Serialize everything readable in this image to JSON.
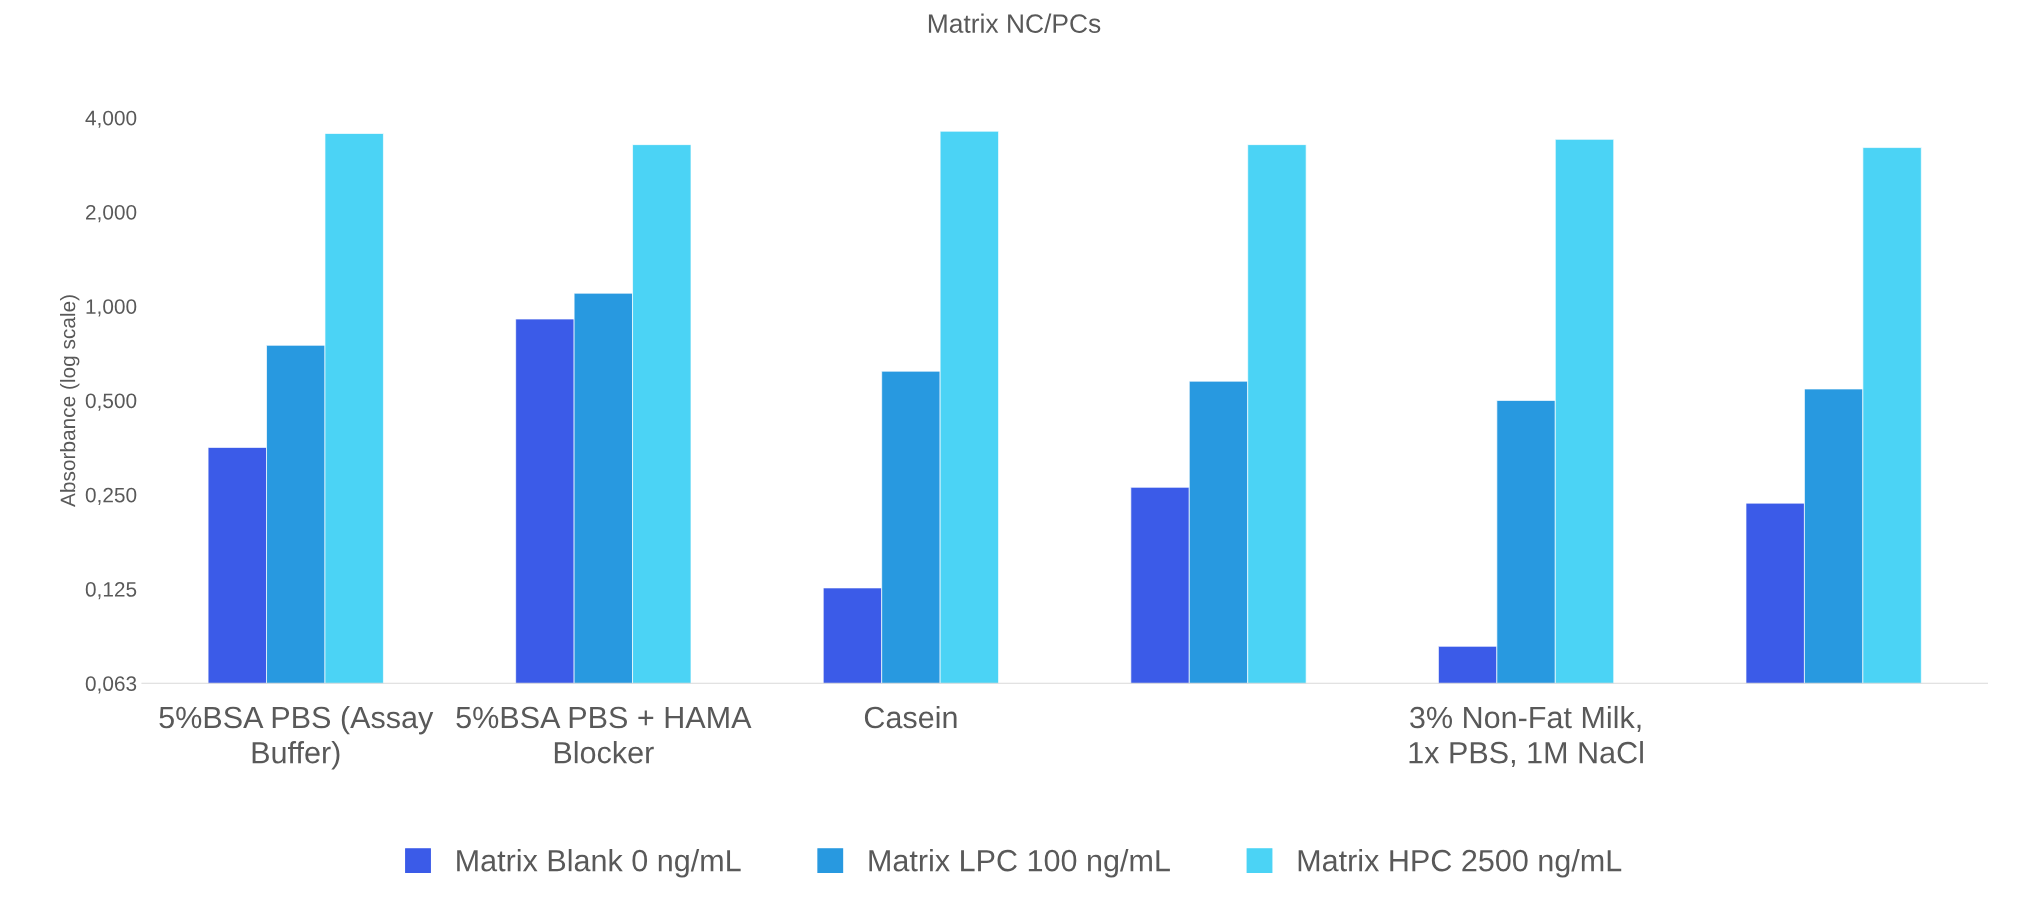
{
  "chart_data": {
    "type": "bar",
    "title": "Matrix NC/PCs",
    "ylabel": "Absorbance (log scale)",
    "log": true,
    "categories": [
      "5%BSA PBS (Assay Buffer)",
      "5%BSA PBS + HAMA Blocker",
      "Casein",
      null,
      "3% Non-Fat Milk, 1x PBS, 1M NaCl",
      null
    ],
    "series": [
      {
        "name": "Matrix Blank 0 ng/mL",
        "color": "#3b5be8",
        "values": [
          0.354,
          0.91,
          0.126,
          0.264,
          0.082,
          0.235
        ]
      },
      {
        "name": "Matrix LPC 100 ng/mL",
        "color": "#2899e0",
        "values": [
          0.75,
          1.1,
          0.62,
          0.576,
          0.5,
          0.544
        ]
      },
      {
        "name": "Matrix HPC 2500 ng/mL",
        "color": "#4bd3f5",
        "values": [
          3.56,
          3.28,
          3.62,
          3.28,
          3.41,
          3.21
        ]
      }
    ],
    "ylim": [
      0.0625,
      4
    ],
    "yticks": [
      {
        "value": 0.0625,
        "label": "0,063"
      },
      {
        "value": 0.125,
        "label": "0,125"
      },
      {
        "value": 0.25,
        "label": "0,250"
      },
      {
        "value": 0.5,
        "label": "0,500"
      },
      {
        "value": 1,
        "label": "1,000"
      },
      {
        "value": 2,
        "label": "2,000"
      },
      {
        "value": 4,
        "label": "4,000"
      }
    ],
    "grid": false,
    "legend": "bottom"
  }
}
